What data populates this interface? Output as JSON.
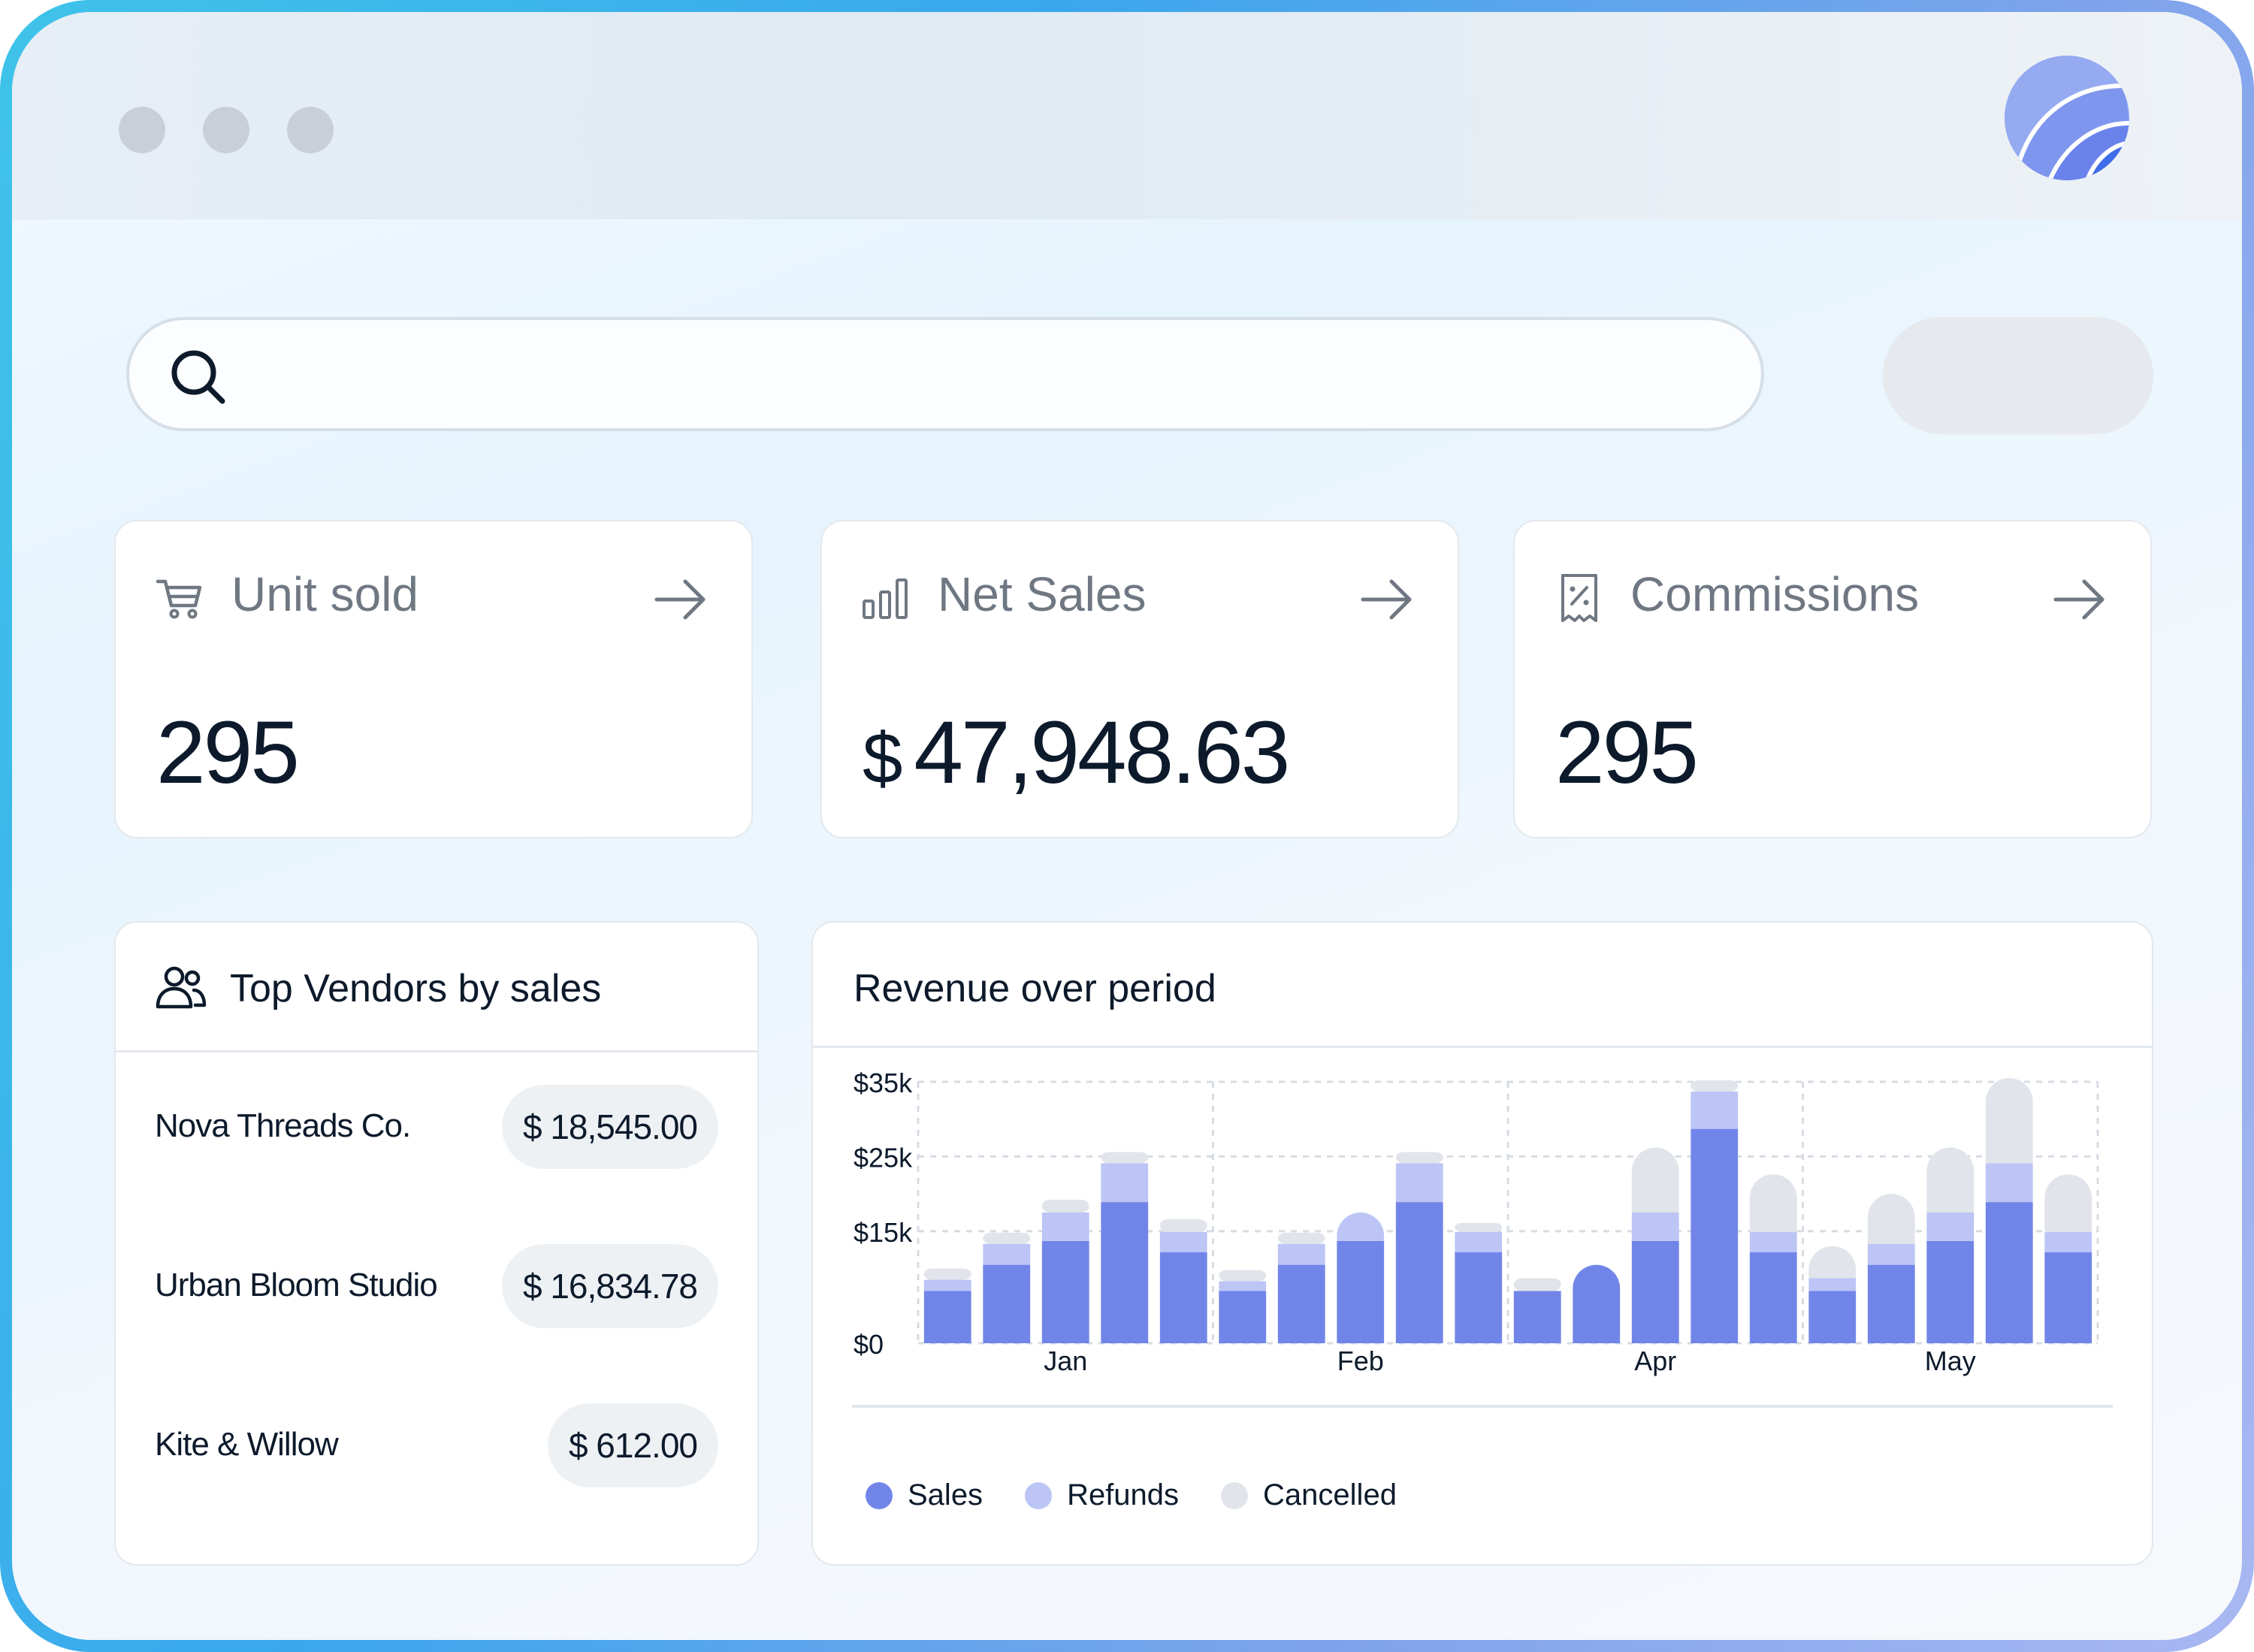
{
  "search": {
    "placeholder": ""
  },
  "stats": [
    {
      "label": "Unit sold",
      "currency": "",
      "value": "295",
      "icon": "cart-icon"
    },
    {
      "label": "Net Sales",
      "currency": "$",
      "value": "47,948.63",
      "icon": "bar-chart-icon"
    },
    {
      "label": "Commissions",
      "currency": "",
      "value": "295",
      "icon": "receipt-percent-icon"
    }
  ],
  "vendors": {
    "title": "Top Vendors by sales",
    "icon": "users-icon",
    "rows": [
      {
        "name": "Nova Threads Co.",
        "amount": "$ 18,545.00"
      },
      {
        "name": "Urban Bloom Studio",
        "amount": "$ 16,834.78"
      },
      {
        "name": "Kite & Willow",
        "amount": "$ 612.00"
      }
    ]
  },
  "revenue": {
    "title": "Revenue over period"
  },
  "colors": {
    "sales": "#7185e9",
    "refunds": "#bcc5f5",
    "cancelled": "#e1e4ea"
  },
  "chart_data": {
    "type": "bar",
    "stacked": true,
    "x_ticks": [
      "Jan",
      "Feb",
      "Apr",
      "May"
    ],
    "y_ticks": [
      "$0",
      "$15k",
      "$25k",
      "$35k"
    ],
    "y_tick_values": [
      0,
      15,
      25,
      35
    ],
    "ylim": [
      0,
      35
    ],
    "grid": true,
    "legend_position": "bottom",
    "legend": [
      "Sales",
      "Refunds",
      "Cancelled"
    ],
    "series": [
      {
        "name": "Sales",
        "values": [
          7,
          10.5,
          13.7,
          18.9,
          12.2,
          7,
          10.5,
          13.7,
          18.9,
          12.2,
          7,
          10.5,
          13.7,
          28.7,
          12.2,
          7,
          10.5,
          13.7,
          18.9,
          12.2
        ]
      },
      {
        "name": "Refunds",
        "values": [
          1.5,
          2.8,
          3.8,
          5.2,
          2.7,
          1.3,
          2.8,
          3.8,
          5.2,
          2.7,
          0,
          0,
          3.8,
          5,
          2.7,
          1.7,
          2.8,
          3.8,
          5.2,
          2.7
        ]
      },
      {
        "name": "Cancelled",
        "values": [
          1.5,
          1.5,
          1.7,
          1.5,
          1.7,
          1.5,
          1.5,
          0,
          1.5,
          1.2,
          1.7,
          0,
          8.7,
          1.5,
          7.7,
          4.3,
          6.7,
          8.7,
          11.4,
          7.7
        ]
      }
    ]
  }
}
